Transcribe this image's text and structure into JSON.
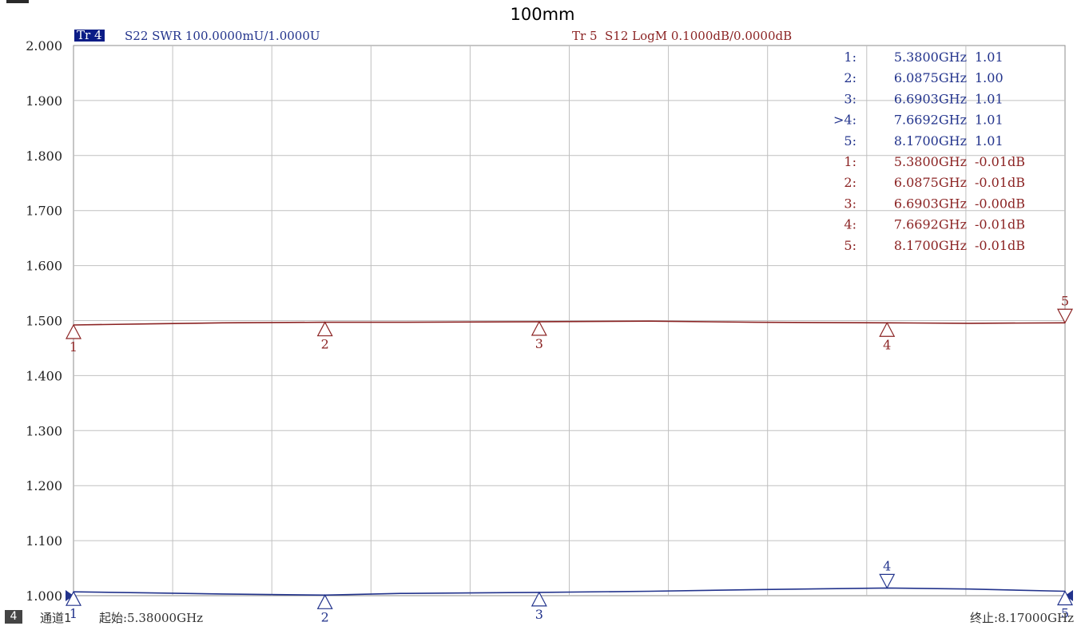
{
  "title": "100mm",
  "colors": {
    "trace4": "#22338c",
    "trace5": "#8b2323",
    "grid": "#c0c0c0",
    "tag_bg": "#0b1c86"
  },
  "trace4": {
    "tag": "Tr 4",
    "info": "S22 SWR 100.0000mU/1.0000U"
  },
  "trace5": {
    "info": "Tr 5  S12 LogM 0.1000dB/0.0000dB"
  },
  "markers4": [
    {
      "label": "1:",
      "freq": "5.3800GHz",
      "val": "1.01"
    },
    {
      "label": "2:",
      "freq": "6.0875GHz",
      "val": "1.00"
    },
    {
      "label": "3:",
      "freq": "6.6903GHz",
      "val": "1.01"
    },
    {
      "label": ">4:",
      "freq": "7.6692GHz",
      "val": "1.01"
    },
    {
      "label": "5:",
      "freq": "8.1700GHz",
      "val": "1.01"
    }
  ],
  "markers5": [
    {
      "label": "1:",
      "freq": "5.3800GHz",
      "val": "-0.01dB"
    },
    {
      "label": "2:",
      "freq": "6.0875GHz",
      "val": "-0.01dB"
    },
    {
      "label": "3:",
      "freq": "6.6903GHz",
      "val": "-0.00dB"
    },
    {
      "label": "4:",
      "freq": "7.6692GHz",
      "val": "-0.01dB"
    },
    {
      "label": "5:",
      "freq": "8.1700GHz",
      "val": "-0.01dB"
    }
  ],
  "bottom": {
    "channel_num": "4",
    "channel_label": "通道1",
    "start": "起始:5.38000GHz",
    "stop": "终止:8.17000GHz"
  },
  "chart_data": {
    "type": "line",
    "xlim": [
      5.38,
      8.17
    ],
    "ylim": [
      1.0,
      2.0
    ],
    "y_ticks": [
      "2.000",
      "1.900",
      "1.800",
      "1.700",
      "1.600",
      "1.500",
      "1.400",
      "1.300",
      "1.200",
      "1.100",
      "1.000"
    ],
    "grid": true,
    "x_divisions": 10,
    "series": [
      {
        "name": "Tr 4",
        "x": [
          5.38,
          5.6,
          5.8,
          6.0875,
          6.3,
          6.6903,
          7.0,
          7.3,
          7.6692,
          7.9,
          8.17
        ],
        "y": [
          1.007,
          1.005,
          1.003,
          1.001,
          1.004,
          1.006,
          1.008,
          1.011,
          1.014,
          1.012,
          1.008
        ]
      },
      {
        "name": "Tr 5",
        "x": [
          5.38,
          5.6,
          5.8,
          6.0875,
          6.3,
          6.6903,
          7.0,
          7.3,
          7.6692,
          7.9,
          8.17
        ],
        "y": [
          1.492,
          1.494,
          1.496,
          1.497,
          1.497,
          1.498,
          1.499,
          1.497,
          1.496,
          1.495,
          1.496
        ]
      }
    ],
    "marker_points": [
      {
        "series": 0,
        "label": "1",
        "x": 5.38,
        "y": 1.007,
        "dir": "up"
      },
      {
        "series": 0,
        "label": "2",
        "x": 6.0875,
        "y": 1.001,
        "dir": "up"
      },
      {
        "series": 0,
        "label": "3",
        "x": 6.6903,
        "y": 1.006,
        "dir": "up"
      },
      {
        "series": 0,
        "label": "4",
        "x": 7.6692,
        "y": 1.014,
        "dir": "down"
      },
      {
        "series": 0,
        "label": "5",
        "x": 8.17,
        "y": 1.008,
        "dir": "up"
      },
      {
        "series": 1,
        "label": "1",
        "x": 5.38,
        "y": 1.492,
        "dir": "up"
      },
      {
        "series": 1,
        "label": "2",
        "x": 6.0875,
        "y": 1.497,
        "dir": "up"
      },
      {
        "series": 1,
        "label": "3",
        "x": 6.6903,
        "y": 1.498,
        "dir": "up"
      },
      {
        "series": 1,
        "label": "4",
        "x": 7.6692,
        "y": 1.496,
        "dir": "up"
      },
      {
        "series": 1,
        "label": "5",
        "x": 8.17,
        "y": 1.496,
        "dir": "down"
      }
    ]
  }
}
